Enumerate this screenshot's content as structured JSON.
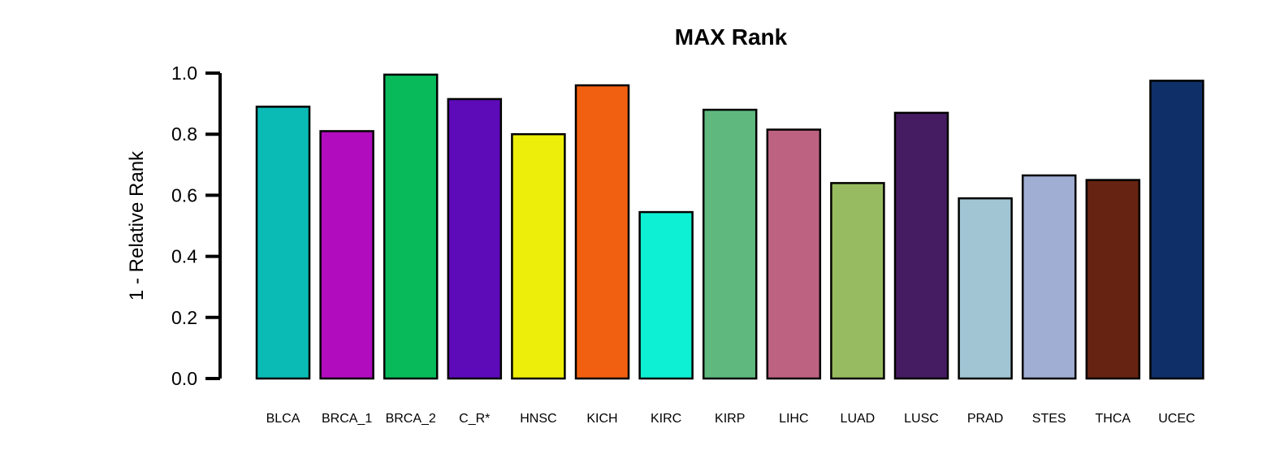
{
  "chart_data": {
    "type": "bar",
    "title": "MAX Rank",
    "xlabel": "",
    "ylabel": "1 - Relative Rank",
    "ylim": [
      0,
      1.0
    ],
    "yticks": [
      "0.0",
      "0.2",
      "0.4",
      "0.6",
      "0.8",
      "1.0"
    ],
    "grid": false,
    "categories": [
      "BLCA",
      "BRCA_1",
      "BRCA_2",
      "C_R*",
      "HNSC",
      "KICH",
      "KIRC",
      "KIRP",
      "LIHC",
      "LUAD",
      "LUSC",
      "PRAD",
      "STES",
      "THCA",
      "UCEC"
    ],
    "values": [
      0.89,
      0.81,
      0.995,
      0.915,
      0.8,
      0.96,
      0.545,
      0.88,
      0.815,
      0.64,
      0.87,
      0.59,
      0.665,
      0.65,
      0.975
    ],
    "colors": [
      "#0ABAB5",
      "#B10CBE",
      "#08BA5A",
      "#5D0AB9",
      "#EEEE0B",
      "#F15F10",
      "#0EF0D3",
      "#5FB97F",
      "#BD6281",
      "#97BB60",
      "#451C61",
      "#A1C5D3",
      "#A0AED3",
      "#662311",
      "#0E2F68"
    ]
  }
}
